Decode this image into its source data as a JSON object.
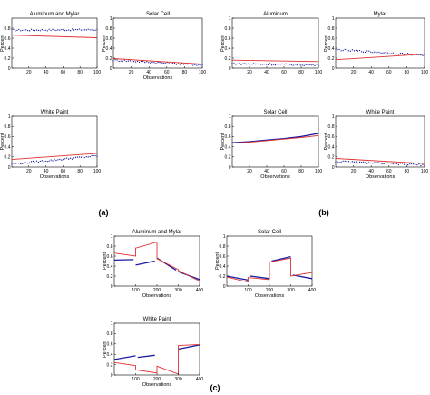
{
  "figure": {
    "labels": [
      "(a)",
      "(b)",
      "(c)"
    ]
  },
  "colors": {
    "measured": "#1a1aa0",
    "model": "#e03030",
    "frame": "#000000"
  },
  "chart_data": [
    {
      "group": "(a)",
      "type": "scatter",
      "title": "Aluminum and Mylar",
      "xlabel": "",
      "ylabel": "Percent",
      "xlim": [
        0,
        100
      ],
      "ylim": [
        0,
        1
      ],
      "xticks": [
        20,
        40,
        60,
        80,
        100
      ],
      "yticks": [
        0,
        0.2,
        0.4,
        0.6,
        0.8
      ],
      "series": [
        {
          "kind": "points",
          "x": [
            0,
            100
          ],
          "y": [
            0.76,
            0.77
          ]
        },
        {
          "kind": "line",
          "x": [
            0,
            100
          ],
          "y": [
            0.66,
            0.61
          ]
        }
      ]
    },
    {
      "group": "(a)",
      "type": "scatter",
      "title": "Solar Cell",
      "xlabel": "Observations",
      "ylabel": "Percent",
      "xlim": [
        0,
        100
      ],
      "ylim": [
        0,
        1
      ],
      "xticks": [
        20,
        40,
        60,
        80,
        100
      ],
      "yticks": [
        0,
        0.2,
        0.4,
        0.6,
        0.8,
        1
      ],
      "series": [
        {
          "kind": "points",
          "x": [
            0,
            100
          ],
          "y": [
            0.16,
            0.06
          ]
        },
        {
          "kind": "line",
          "x": [
            0,
            100
          ],
          "y": [
            0.19,
            0.08
          ]
        }
      ]
    },
    {
      "group": "(a)",
      "type": "scatter",
      "title": "White Paint",
      "xlabel": "Observations",
      "ylabel": "Percent",
      "xlim": [
        0,
        100
      ],
      "ylim": [
        0,
        1
      ],
      "xticks": [
        20,
        40,
        60,
        80,
        100
      ],
      "yticks": [
        0,
        0.2,
        0.4,
        0.6,
        0.8,
        1
      ],
      "series": [
        {
          "kind": "points",
          "x": [
            0,
            100
          ],
          "y": [
            0.06,
            0.22
          ]
        },
        {
          "kind": "line",
          "x": [
            0,
            100
          ],
          "y": [
            0.15,
            0.27
          ]
        }
      ]
    },
    {
      "group": "(b)",
      "type": "scatter",
      "title": "Aluminum",
      "xlabel": "",
      "ylabel": "Percent",
      "xlim": [
        0,
        100
      ],
      "ylim": [
        0,
        1
      ],
      "xticks": [
        20,
        40,
        60,
        80,
        100
      ],
      "yticks": [
        0,
        0.2,
        0.4,
        0.6,
        0.8,
        1
      ],
      "series": [
        {
          "kind": "points",
          "x": [
            0,
            100
          ],
          "y": [
            0.09,
            0.06
          ]
        },
        {
          "kind": "line",
          "x": [
            0,
            100
          ],
          "y": [
            0.16,
            0.13
          ]
        }
      ]
    },
    {
      "group": "(b)",
      "type": "scatter",
      "title": "Mylar",
      "xlabel": "",
      "ylabel": "Percent",
      "xlim": [
        0,
        100
      ],
      "ylim": [
        0,
        1
      ],
      "xticks": [
        20,
        40,
        60,
        80,
        100
      ],
      "yticks": [
        0,
        0.2,
        0.4,
        0.6,
        0.8,
        1
      ],
      "series": [
        {
          "kind": "points",
          "x": [
            0,
            100
          ],
          "y": [
            0.37,
            0.26
          ]
        },
        {
          "kind": "line",
          "x": [
            0,
            100
          ],
          "y": [
            0.17,
            0.28
          ]
        }
      ]
    },
    {
      "group": "(b)",
      "type": "line",
      "title": "Solar Cell",
      "xlabel": "Observations",
      "ylabel": "Percent",
      "xlim": [
        0,
        100
      ],
      "ylim": [
        0,
        1
      ],
      "xticks": [
        20,
        40,
        60,
        80,
        100
      ],
      "yticks": [
        0,
        0.2,
        0.4,
        0.6,
        0.8,
        1
      ],
      "series": [
        {
          "kind": "line",
          "x": [
            0,
            20,
            40,
            60,
            80,
            100
          ],
          "y": [
            0.48,
            0.5,
            0.53,
            0.56,
            0.6,
            0.66
          ]
        },
        {
          "kind": "line",
          "x": [
            0,
            20,
            40,
            60,
            80,
            100
          ],
          "y": [
            0.47,
            0.49,
            0.52,
            0.55,
            0.58,
            0.62
          ]
        }
      ]
    },
    {
      "group": "(b)",
      "type": "scatter",
      "title": "White Paint",
      "xlabel": "Observations",
      "ylabel": "Percent",
      "xlim": [
        0,
        100
      ],
      "ylim": [
        0,
        1
      ],
      "xticks": [
        20,
        40,
        60,
        80,
        100
      ],
      "yticks": [
        0,
        0.2,
        0.4,
        0.6,
        0.8,
        1
      ],
      "series": [
        {
          "kind": "points",
          "x": [
            0,
            100
          ],
          "y": [
            0.11,
            0.04
          ]
        },
        {
          "kind": "line",
          "x": [
            0,
            100
          ],
          "y": [
            0.17,
            0.07
          ]
        }
      ]
    },
    {
      "group": "(c)",
      "type": "line",
      "title": "Aluminum and Mylar",
      "xlabel": "Observations",
      "ylabel": "Percent",
      "xlim": [
        0,
        400
      ],
      "ylim": [
        0,
        1
      ],
      "xticks": [
        100,
        200,
        300,
        400
      ],
      "yticks": [
        0,
        0.2,
        0.4,
        0.6,
        0.8,
        1
      ],
      "series": [
        {
          "kind": "line",
          "x": [
            0,
            90,
            null,
            100,
            190,
            null,
            200,
            290,
            null,
            300,
            400
          ],
          "y": [
            0.52,
            0.53,
            null,
            0.42,
            0.5,
            null,
            0.56,
            0.32,
            null,
            0.29,
            0.13
          ]
        },
        {
          "kind": "line",
          "x": [
            0,
            100,
            100,
            200,
            200,
            300,
            300,
            400
          ],
          "y": [
            0.66,
            0.6,
            0.76,
            0.88,
            0.55,
            0.33,
            0.31,
            0.1
          ]
        }
      ]
    },
    {
      "group": "(c)",
      "type": "line",
      "title": "Solar Cell",
      "xlabel": "Observations",
      "ylabel": "Percent",
      "xlim": [
        0,
        400
      ],
      "ylim": [
        0,
        1
      ],
      "xticks": [
        100,
        200,
        300,
        400
      ],
      "yticks": [
        0,
        0.2,
        0.4,
        0.6,
        0.8,
        1
      ],
      "series": [
        {
          "kind": "line",
          "x": [
            0,
            100,
            null,
            110,
            200,
            null,
            210,
            300,
            null,
            310,
            400
          ],
          "y": [
            0.2,
            0.12,
            null,
            0.2,
            0.15,
            null,
            0.5,
            0.59,
            null,
            0.22,
            0.15
          ]
        },
        {
          "kind": "line",
          "x": [
            0,
            100,
            100,
            200,
            200,
            300,
            300,
            400
          ],
          "y": [
            0.18,
            0.08,
            0.17,
            0.13,
            0.48,
            0.56,
            0.2,
            0.27
          ]
        }
      ]
    },
    {
      "group": "(c)",
      "type": "line",
      "title": "White Paint",
      "xlabel": "Observations",
      "ylabel": "Percent",
      "xlim": [
        0,
        400
      ],
      "ylim": [
        0,
        1
      ],
      "xticks": [
        100,
        200,
        300,
        400
      ],
      "yticks": [
        0,
        0.2,
        0.4,
        0.6,
        0.8,
        1
      ],
      "series": [
        {
          "kind": "line",
          "x": [
            0,
            100,
            null,
            110,
            190,
            null,
            300,
            400
          ],
          "y": [
            0.3,
            0.37,
            null,
            0.34,
            0.38,
            null,
            0.5,
            0.58
          ]
        },
        {
          "kind": "line",
          "x": [
            0,
            100,
            100,
            200,
            200,
            300,
            300,
            400
          ],
          "y": [
            0.24,
            0.18,
            0.1,
            0.04,
            0.17,
            0.02,
            0.57,
            0.59
          ]
        }
      ]
    }
  ]
}
